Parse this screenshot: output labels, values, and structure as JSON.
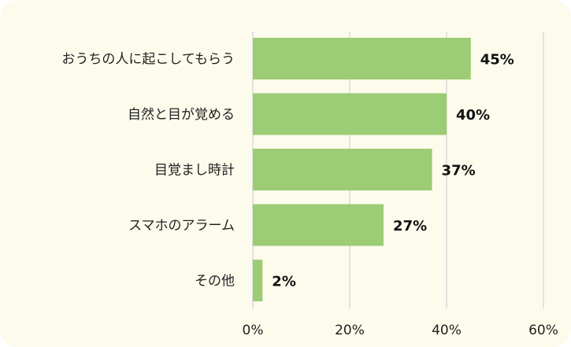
{
  "chart_data": {
    "type": "bar",
    "orientation": "horizontal",
    "categories": [
      "おうちの人に起こしてもらう",
      "自然と目が覚める",
      "目覚まし時計",
      "スマホのアラーム",
      "その他"
    ],
    "values": [
      45,
      40,
      37,
      27,
      2
    ],
    "value_labels": [
      "45%",
      "40%",
      "37%",
      "27%",
      "2%"
    ],
    "xlim": [
      0,
      60
    ],
    "x_ticks": [
      0,
      20,
      40,
      60
    ],
    "x_tick_labels": [
      "0%",
      "20%",
      "40%",
      "60%"
    ],
    "grid": "vertical",
    "legend": "none",
    "colors": {
      "bar": "#9ccc76",
      "gridline": "#d9d9d9",
      "background": "#fcfbec"
    }
  }
}
